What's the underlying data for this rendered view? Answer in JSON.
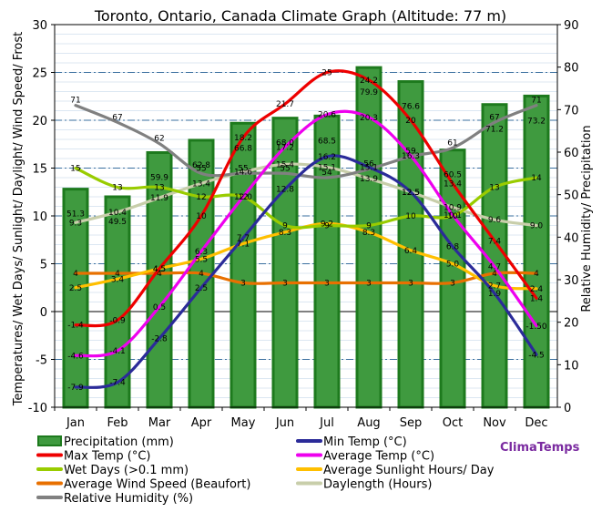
{
  "chart_data": {
    "type": "line",
    "title": "Toronto, Ontario, Canada Climate Graph (Altitude: 77 m)",
    "ylabel_left": "Temperatures/ Wet Days/ Sunlight/ Daylight/ Wind Speed/ Frost",
    "ylabel_right": "Relative Humidity/ Precipitation",
    "categories": [
      "Jan",
      "Feb",
      "Mar",
      "Apr",
      "May",
      "Jun",
      "Jul",
      "Aug",
      "Sep",
      "Oct",
      "Nov",
      "Dec"
    ],
    "ylim_left": [
      -10,
      30
    ],
    "ylim_right": [
      0,
      90
    ],
    "yticks_left": [
      -10,
      -5,
      0,
      5,
      10,
      15,
      20,
      25,
      30
    ],
    "yticks_right": [
      0,
      10,
      20,
      30,
      40,
      50,
      60,
      70,
      80,
      90
    ],
    "grid": true,
    "bar_series": {
      "name": "Precipitation (mm)",
      "axis": "right",
      "color": "#2e8b2e",
      "values": [
        51.3,
        49.5,
        59.9,
        62.8,
        66.8,
        68.0,
        68.5,
        79.9,
        76.6,
        60.5,
        71.2,
        73.2
      ],
      "labels": [
        "51.3",
        "49.5",
        "59.9",
        "62.8",
        "66.8",
        "68.0",
        "68.5",
        "79.9",
        "76.6",
        "60.5",
        "71.2",
        "73.2"
      ]
    },
    "series": [
      {
        "name": "Max Temp (°C)",
        "axis": "left",
        "color": "#ee0000",
        "values": [
          -1.4,
          -0.9,
          4.5,
          10,
          18.2,
          21.7,
          25,
          24.2,
          20,
          13.4,
          7.4,
          1.4
        ],
        "labels": [
          "-1.4",
          "-0.9",
          "4.5",
          "10",
          "18.2",
          "21.7",
          "25",
          "24.2",
          "20",
          "13.4",
          "7.4",
          "1.4"
        ]
      },
      {
        "name": "Min Temp (°C)",
        "axis": "left",
        "color": "#2b2b99",
        "values": [
          -7.9,
          -7.4,
          -2.8,
          2.5,
          7.7,
          12.8,
          16.2,
          15.1,
          12.5,
          6.8,
          1.9,
          -4.5
        ],
        "labels": [
          "-7.9",
          "-7.4",
          "-2.8",
          "2.5",
          "7.7",
          "12.8",
          "16.2",
          "15.1",
          "12.5",
          "6.8",
          "1.9",
          "-4.5"
        ]
      },
      {
        "name": "Average Temp (°C)",
        "axis": "left",
        "color": "#ee00ee",
        "values": [
          -4.6,
          -4.1,
          0.5,
          6.3,
          12.0,
          17.2,
          20.6,
          20.3,
          16.3,
          10.1,
          4.7,
          -1.5
        ],
        "labels": [
          "-4.6",
          "-4.1",
          "0.5",
          "6.3",
          "12.0",
          "17.2",
          "20.6",
          "20.3",
          "16.3",
          "10.1",
          "4.7",
          "-1.50"
        ]
      },
      {
        "name": "Wet Days (>0.1 mm)",
        "axis": "left",
        "color": "#99cc00",
        "values": [
          15,
          13,
          13,
          12,
          12,
          9,
          9,
          9,
          10,
          10,
          13,
          14
        ],
        "labels": [
          "15",
          "13",
          "13",
          "12",
          "12",
          "9",
          "9",
          "9",
          "10",
          "10",
          "13",
          "14"
        ]
      },
      {
        "name": "Average Sunlight Hours/ Day",
        "axis": "left",
        "color": "#ffbf00",
        "values": [
          2.5,
          3.4,
          4.5,
          5.5,
          7.1,
          8.3,
          9.2,
          8.3,
          6.4,
          5.0,
          2.7,
          2.4
        ],
        "labels": [
          "2.5",
          "3.4",
          "4.5",
          "5.5",
          "7.1",
          "8.3",
          "9.2",
          "8.3",
          "6.4",
          "5.0",
          "2.7",
          "2.4"
        ]
      },
      {
        "name": "Average Wind Speed (Beaufort)",
        "axis": "left",
        "color": "#e87000",
        "values": [
          4,
          4,
          4,
          4,
          3,
          3,
          3,
          3,
          3,
          3,
          4,
          4
        ],
        "labels": [
          "4",
          "4",
          "4",
          "4",
          "3",
          "3",
          "3",
          "3",
          "3",
          "3",
          "4",
          "4"
        ]
      },
      {
        "name": "Daylength (Hours)",
        "axis": "left",
        "color": "#c8ceaa",
        "values": [
          9.3,
          10.4,
          11.9,
          13.4,
          14.6,
          15.4,
          15.1,
          13.9,
          12.5,
          10.9,
          9.6,
          9.0
        ],
        "labels": [
          "9.3",
          "10.4",
          "11.9",
          "13.4",
          "14.6",
          "15.4",
          "15.1",
          "13.9",
          "12.5",
          "10.9",
          "9.6",
          "9.0"
        ]
      },
      {
        "name": "Relative Humidity (%)",
        "axis": "right",
        "color": "#808080",
        "values": [
          71,
          67,
          62,
          55,
          55,
          55,
          54,
          56,
          59,
          61,
          67,
          71
        ],
        "labels": [
          "71",
          "67",
          "62",
          "55",
          "55",
          "55",
          "54",
          "56",
          "59",
          "61",
          "67",
          "71"
        ]
      }
    ],
    "legend_position": "bottom",
    "watermark": "ClimaTemps"
  }
}
